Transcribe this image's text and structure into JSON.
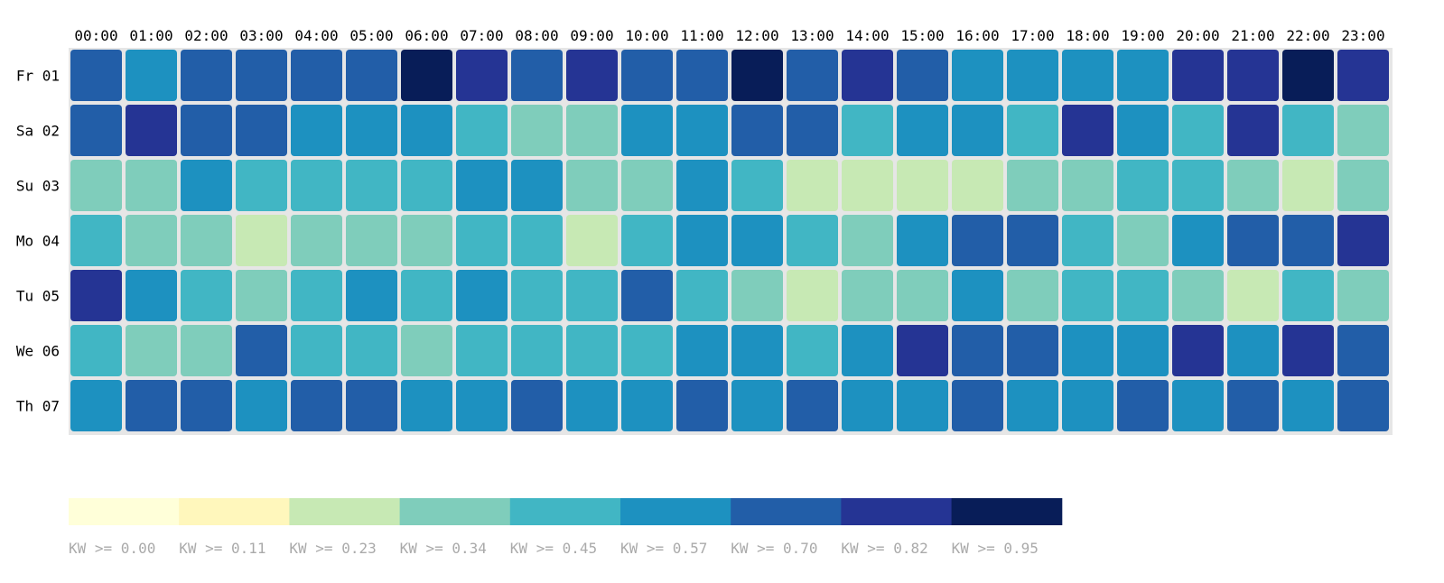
{
  "chart_data": {
    "type": "heatmap",
    "hours": [
      "00:00",
      "01:00",
      "02:00",
      "03:00",
      "04:00",
      "05:00",
      "06:00",
      "07:00",
      "08:00",
      "09:00",
      "10:00",
      "11:00",
      "12:00",
      "13:00",
      "14:00",
      "15:00",
      "16:00",
      "17:00",
      "18:00",
      "19:00",
      "20:00",
      "21:00",
      "22:00",
      "23:00"
    ],
    "days": [
      "Fr 01",
      "Sa 02",
      "Su 03",
      "Mo 04",
      "Tu 05",
      "We 06",
      "Th 07"
    ],
    "bucket_levels": [
      [
        6,
        5,
        6,
        6,
        6,
        6,
        8,
        7,
        6,
        7,
        6,
        6,
        8,
        6,
        7,
        6,
        5,
        5,
        5,
        5,
        7,
        7,
        8,
        7
      ],
      [
        6,
        7,
        6,
        6,
        5,
        5,
        5,
        4,
        3,
        3,
        5,
        5,
        6,
        6,
        4,
        5,
        5,
        4,
        7,
        5,
        4,
        7,
        4,
        3
      ],
      [
        3,
        3,
        5,
        4,
        4,
        4,
        4,
        5,
        5,
        3,
        3,
        5,
        4,
        2,
        2,
        2,
        2,
        3,
        3,
        4,
        4,
        3,
        2,
        3
      ],
      [
        4,
        3,
        3,
        2,
        3,
        3,
        3,
        4,
        4,
        2,
        4,
        5,
        5,
        4,
        3,
        5,
        6,
        6,
        4,
        3,
        5,
        6,
        6,
        7
      ],
      [
        7,
        5,
        4,
        3,
        4,
        5,
        4,
        5,
        4,
        4,
        6,
        4,
        3,
        2,
        3,
        3,
        5,
        3,
        4,
        4,
        3,
        2,
        4,
        3
      ],
      [
        4,
        3,
        3,
        6,
        4,
        4,
        3,
        4,
        4,
        4,
        4,
        5,
        5,
        4,
        5,
        7,
        6,
        6,
        5,
        5,
        7,
        5,
        7,
        6
      ],
      [
        5,
        6,
        6,
        5,
        6,
        6,
        5,
        5,
        6,
        5,
        5,
        6,
        5,
        6,
        5,
        5,
        6,
        5,
        5,
        6,
        5,
        6,
        5,
        6
      ]
    ],
    "legend": {
      "labels": [
        "KW >= 0.00",
        "KW >= 0.11",
        "KW >= 0.23",
        "KW >= 0.34",
        "KW >= 0.45",
        "KW >= 0.57",
        "KW >= 0.70",
        "KW >= 0.82",
        "KW >= 0.95"
      ],
      "thresholds": [
        0.0,
        0.11,
        0.23,
        0.34,
        0.45,
        0.57,
        0.7,
        0.82,
        0.95
      ],
      "colors": [
        "#ffffd9",
        "#fff7bc",
        "#c7e9b4",
        "#7fcdbb",
        "#41b6c4",
        "#1d91c0",
        "#225ea8",
        "#253494",
        "#081d58"
      ]
    },
    "grid_background": "#e6e6e6",
    "legend_label_color": "#aaaaaa"
  }
}
